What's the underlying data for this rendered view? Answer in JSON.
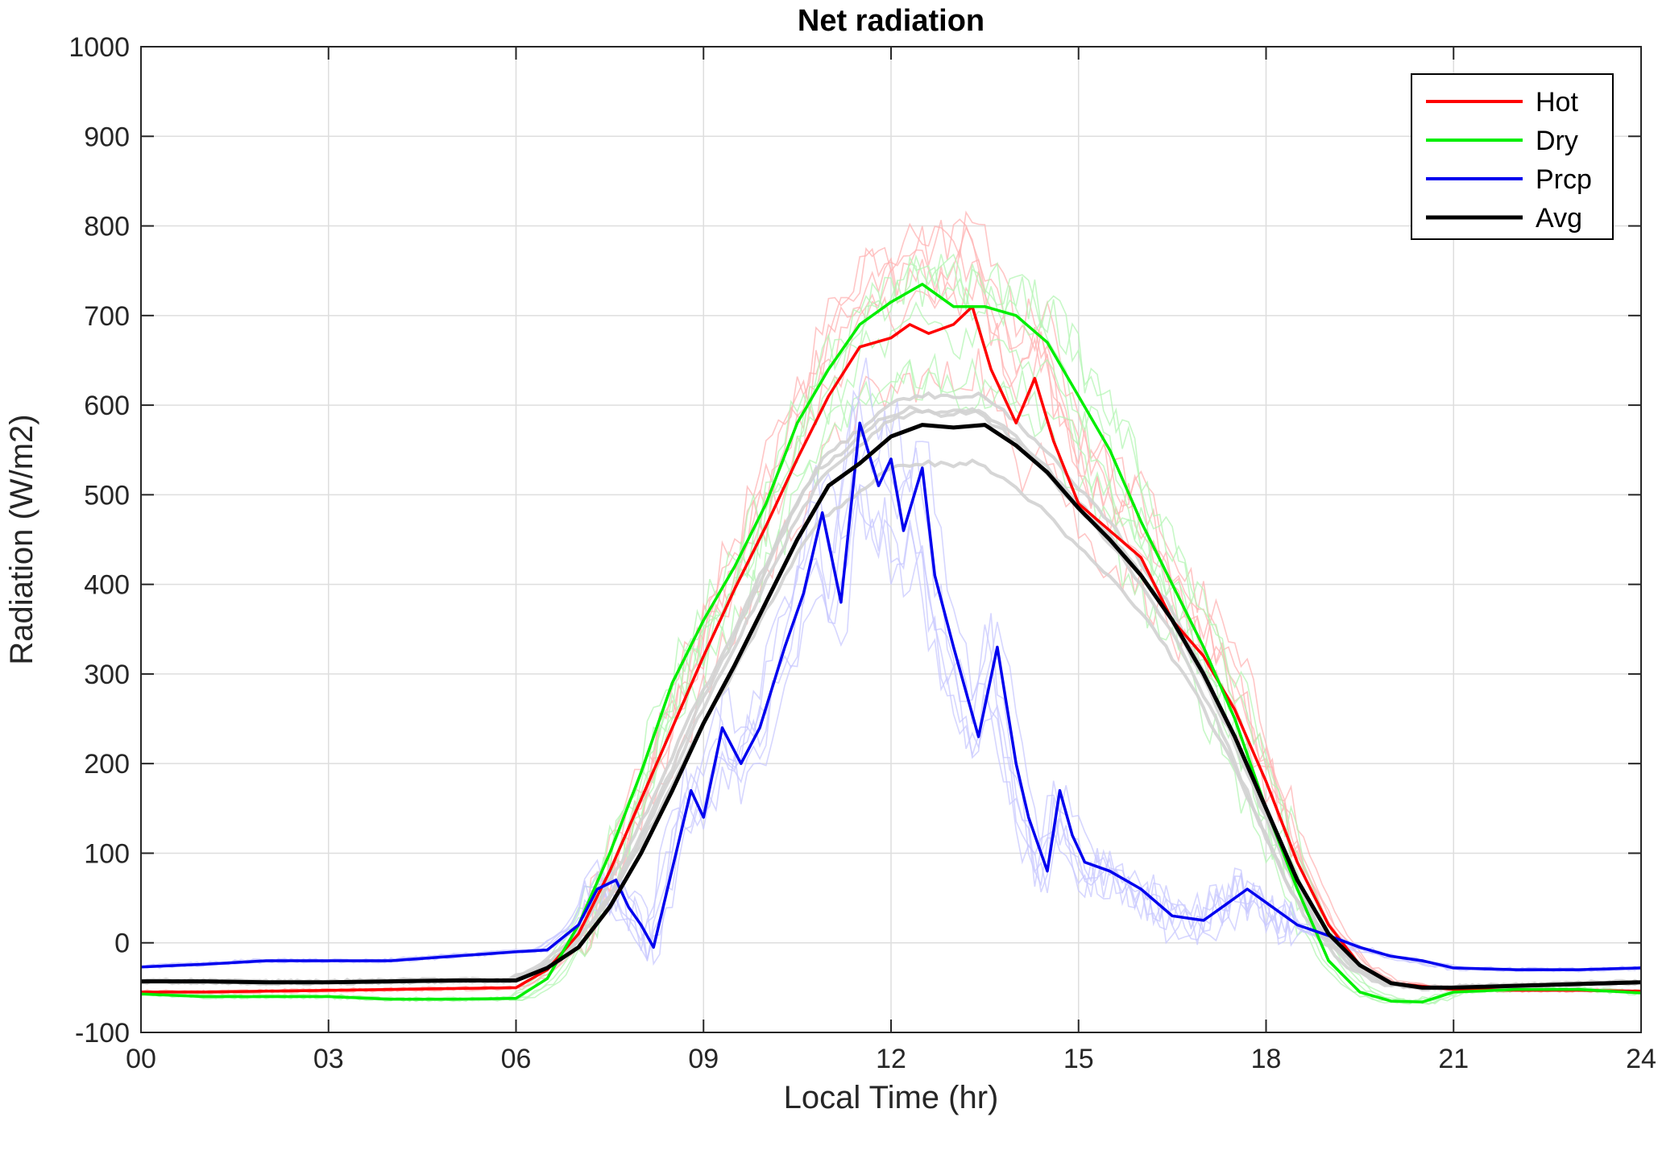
{
  "chart_data": {
    "type": "line",
    "title": "Net radiation",
    "xlabel": "Local Time (hr)",
    "ylabel": "Radiation (W/m2)",
    "xlim": [
      0,
      24
    ],
    "ylim": [
      -100,
      1000
    ],
    "xticks": [
      0,
      3,
      6,
      9,
      12,
      15,
      18,
      21,
      24
    ],
    "xtick_labels": [
      "00",
      "03",
      "06",
      "09",
      "12",
      "15",
      "18",
      "21",
      "24"
    ],
    "yticks": [
      -100,
      0,
      100,
      200,
      300,
      400,
      500,
      600,
      700,
      800,
      900,
      1000
    ],
    "ytick_labels": [
      "-100",
      "0",
      "100",
      "200",
      "300",
      "400",
      "500",
      "600",
      "700",
      "800",
      "900",
      "1000"
    ],
    "grid": true,
    "legend_position": "top-right",
    "series": [
      {
        "name": "Hot",
        "color": "#ff0000",
        "points": [
          [
            0,
            -55
          ],
          [
            1,
            -55
          ],
          [
            2,
            -54
          ],
          [
            3,
            -53
          ],
          [
            4,
            -52
          ],
          [
            5,
            -51
          ],
          [
            6,
            -50
          ],
          [
            6.5,
            -30
          ],
          [
            7,
            10
          ],
          [
            7.5,
            80
          ],
          [
            8,
            160
          ],
          [
            8.5,
            240
          ],
          [
            9,
            320
          ],
          [
            9.5,
            395
          ],
          [
            10,
            465
          ],
          [
            10.5,
            540
          ],
          [
            11,
            610
          ],
          [
            11.5,
            665
          ],
          [
            12,
            675
          ],
          [
            12.3,
            690
          ],
          [
            12.6,
            680
          ],
          [
            13,
            690
          ],
          [
            13.3,
            710
          ],
          [
            13.6,
            640
          ],
          [
            14,
            580
          ],
          [
            14.3,
            630
          ],
          [
            14.6,
            560
          ],
          [
            15,
            490
          ],
          [
            15.5,
            460
          ],
          [
            16,
            430
          ],
          [
            16.5,
            360
          ],
          [
            17,
            320
          ],
          [
            17.5,
            260
          ],
          [
            18,
            180
          ],
          [
            18.5,
            90
          ],
          [
            19,
            20
          ],
          [
            19.5,
            -25
          ],
          [
            20,
            -45
          ],
          [
            21,
            -52
          ],
          [
            22,
            -53
          ],
          [
            23,
            -53
          ],
          [
            24,
            -54
          ]
        ]
      },
      {
        "name": "Dry",
        "color": "#00ee00",
        "points": [
          [
            0,
            -57
          ],
          [
            1,
            -60
          ],
          [
            2,
            -60
          ],
          [
            3,
            -60
          ],
          [
            4,
            -63
          ],
          [
            5,
            -63
          ],
          [
            6,
            -62
          ],
          [
            6.5,
            -40
          ],
          [
            7,
            20
          ],
          [
            7.5,
            100
          ],
          [
            8,
            190
          ],
          [
            8.5,
            290
          ],
          [
            9,
            360
          ],
          [
            9.5,
            420
          ],
          [
            10,
            490
          ],
          [
            10.5,
            580
          ],
          [
            11,
            640
          ],
          [
            11.5,
            690
          ],
          [
            12,
            715
          ],
          [
            12.5,
            735
          ],
          [
            13,
            710
          ],
          [
            13.5,
            710
          ],
          [
            14,
            700
          ],
          [
            14.5,
            670
          ],
          [
            15,
            610
          ],
          [
            15.5,
            550
          ],
          [
            16,
            470
          ],
          [
            16.5,
            400
          ],
          [
            17,
            330
          ],
          [
            17.5,
            250
          ],
          [
            18,
            150
          ],
          [
            18.5,
            60
          ],
          [
            19,
            -20
          ],
          [
            19.5,
            -55
          ],
          [
            20,
            -65
          ],
          [
            20.5,
            -66
          ],
          [
            21,
            -55
          ],
          [
            22,
            -52
          ],
          [
            23,
            -52
          ],
          [
            24,
            -56
          ]
        ]
      },
      {
        "name": "Prcp",
        "color": "#0000ee",
        "points": [
          [
            0,
            -27
          ],
          [
            1,
            -24
          ],
          [
            2,
            -20
          ],
          [
            3,
            -20
          ],
          [
            4,
            -20
          ],
          [
            5,
            -15
          ],
          [
            6,
            -10
          ],
          [
            6.5,
            -8
          ],
          [
            7,
            20
          ],
          [
            7.3,
            60
          ],
          [
            7.6,
            70
          ],
          [
            7.8,
            40
          ],
          [
            8,
            20
          ],
          [
            8.2,
            -5
          ],
          [
            8.8,
            170
          ],
          [
            9,
            140
          ],
          [
            9.3,
            240
          ],
          [
            9.6,
            200
          ],
          [
            9.9,
            240
          ],
          [
            10.3,
            330
          ],
          [
            10.6,
            390
          ],
          [
            10.9,
            480
          ],
          [
            11.2,
            380
          ],
          [
            11.5,
            580
          ],
          [
            11.8,
            510
          ],
          [
            12,
            540
          ],
          [
            12.2,
            460
          ],
          [
            12.5,
            530
          ],
          [
            12.7,
            410
          ],
          [
            13,
            330
          ],
          [
            13.2,
            280
          ],
          [
            13.4,
            230
          ],
          [
            13.7,
            330
          ],
          [
            14,
            200
          ],
          [
            14.2,
            140
          ],
          [
            14.5,
            80
          ],
          [
            14.7,
            170
          ],
          [
            14.9,
            120
          ],
          [
            15.1,
            90
          ],
          [
            15.5,
            80
          ],
          [
            16,
            60
          ],
          [
            16.5,
            30
          ],
          [
            17,
            25
          ],
          [
            17.4,
            45
          ],
          [
            17.7,
            60
          ],
          [
            18,
            45
          ],
          [
            18.5,
            20
          ],
          [
            19,
            8
          ],
          [
            19.5,
            -5
          ],
          [
            20,
            -15
          ],
          [
            20.5,
            -20
          ],
          [
            21,
            -28
          ],
          [
            22,
            -30
          ],
          [
            23,
            -30
          ],
          [
            24,
            -28
          ]
        ]
      },
      {
        "name": "Avg",
        "color": "#000000",
        "points": [
          [
            0,
            -43
          ],
          [
            1,
            -43
          ],
          [
            2,
            -44
          ],
          [
            3,
            -44
          ],
          [
            4,
            -43
          ],
          [
            5,
            -42
          ],
          [
            6,
            -42
          ],
          [
            6.5,
            -28
          ],
          [
            7,
            -5
          ],
          [
            7.5,
            40
          ],
          [
            8,
            100
          ],
          [
            8.5,
            170
          ],
          [
            9,
            245
          ],
          [
            9.5,
            310
          ],
          [
            10,
            380
          ],
          [
            10.5,
            450
          ],
          [
            11,
            510
          ],
          [
            11.5,
            535
          ],
          [
            12,
            565
          ],
          [
            12.5,
            578
          ],
          [
            13,
            575
          ],
          [
            13.5,
            578
          ],
          [
            14,
            555
          ],
          [
            14.5,
            525
          ],
          [
            15,
            485
          ],
          [
            15.5,
            450
          ],
          [
            16,
            410
          ],
          [
            16.5,
            360
          ],
          [
            17,
            300
          ],
          [
            17.5,
            230
          ],
          [
            18,
            150
          ],
          [
            18.5,
            70
          ],
          [
            19,
            10
          ],
          [
            19.5,
            -25
          ],
          [
            20,
            -45
          ],
          [
            20.5,
            -50
          ],
          [
            21,
            -50
          ],
          [
            22,
            -48
          ],
          [
            23,
            -46
          ],
          [
            24,
            -44
          ]
        ]
      }
    ]
  }
}
